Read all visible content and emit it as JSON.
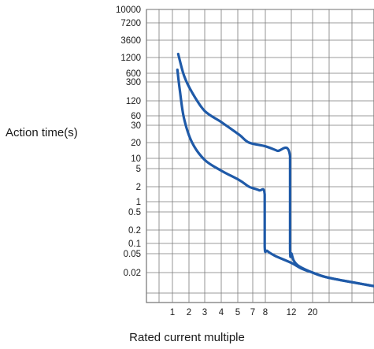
{
  "chart_data": {
    "type": "line",
    "title": "",
    "xlabel": "Rated current multiple",
    "ylabel": "Action time(s)",
    "x_ticks": [
      "1",
      "2",
      "3",
      "4",
      "5",
      "7",
      "8",
      "12",
      "20"
    ],
    "y_ticks": [
      "10000",
      "7200",
      "3600",
      "1200",
      "600",
      "300",
      "120",
      "60",
      "30",
      "20",
      "10",
      "5",
      "2",
      "1",
      "0.5",
      "0.2",
      "0.1",
      "0.05",
      "0.02"
    ],
    "grid": true,
    "line_color": "#1f5aa8",
    "series": [
      {
        "points": [
          [
            1.35,
            1500
          ],
          [
            1.7,
            500
          ],
          [
            2.2,
            180
          ],
          [
            3,
            75
          ],
          [
            4,
            38
          ],
          [
            5.2,
            24
          ],
          [
            6.5,
            20
          ],
          [
            8,
            17
          ],
          [
            9.8,
            14
          ],
          [
            11.8,
            11
          ],
          [
            11.8,
            0.07
          ],
          [
            12.1,
            0.05
          ],
          [
            13,
            0.035
          ],
          [
            15,
            0.027
          ],
          [
            20,
            0.02
          ],
          [
            30,
            0.014
          ],
          [
            60,
            0.008
          ]
        ]
      },
      {
        "points": [
          [
            1.3,
            700
          ],
          [
            1.45,
            200
          ],
          [
            1.7,
            50
          ],
          [
            2.2,
            20
          ],
          [
            3,
            9
          ],
          [
            4,
            4.5
          ],
          [
            5.2,
            2.8
          ],
          [
            6.5,
            2
          ],
          [
            7.5,
            1.7
          ],
          [
            7.95,
            1.4
          ],
          [
            7.95,
            0.08
          ],
          [
            8.3,
            0.06
          ],
          [
            9.5,
            0.045
          ],
          [
            12,
            0.032
          ],
          [
            16,
            0.024
          ],
          [
            20,
            0.02
          ],
          [
            30,
            0.014
          ],
          [
            60,
            0.008
          ]
        ]
      }
    ]
  }
}
